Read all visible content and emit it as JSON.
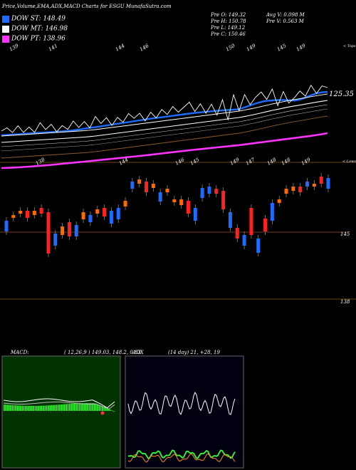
{
  "header": {
    "title": "Price,Volume,EMA,ADX,MACD Charts for ESGU MunafaSutra.com"
  },
  "legend": [
    {
      "label": "DOW ST: 148.49",
      "color": "#1e6bff"
    },
    {
      "label": "DOW MT: 146.98",
      "color": "#ffffff"
    },
    {
      "label": "DOW PT: 138.96",
      "color": "#ff33ff"
    }
  ],
  "stats": {
    "pre_o": "Pre  O: 149.32",
    "pre_h": "Pre  H: 150.78",
    "pre_l": "Pre  L: 149.12",
    "pre_c": "Pre  C: 150.46",
    "avg_v": "Avg V: 0.098  M",
    "pre_v": "Pre  V: 0.563 M"
  },
  "price_panel": {
    "top_labels": [
      "139",
      "141",
      "144",
      "146",
      "150",
      "149",
      "145",
      "149"
    ],
    "right_label": "< Tops",
    "last_value": "125.35"
  },
  "candle_panel": {
    "top_labels": [
      "138",
      "144",
      "146",
      "145",
      "149",
      "147",
      "148",
      "148",
      "149"
    ],
    "right_label": "< Lows",
    "level_label": "145",
    "bottom_label": "138"
  },
  "macd": {
    "label": "MACD:",
    "values": "( 12,26,9 ) 149.03,  148.2,  0.83"
  },
  "adx": {
    "label": "ADX",
    "values": "(14  day) 21,  +28,  19"
  },
  "chart_data": [
    {
      "type": "line",
      "x": [
        0,
        1,
        2,
        3,
        4,
        5,
        6,
        7,
        8,
        9,
        10,
        11,
        12,
        13,
        14,
        15,
        16,
        17,
        18,
        19,
        20,
        21,
        22,
        23,
        24,
        25,
        26,
        27,
        28,
        29,
        30,
        31,
        32,
        33,
        34,
        35,
        36,
        37,
        38,
        39,
        40,
        41,
        42,
        43,
        44,
        45,
        46,
        47,
        48,
        49,
        50,
        51,
        52,
        53,
        54,
        55,
        56,
        57,
        58,
        59
      ],
      "series": [
        {
          "name": "DOW ST",
          "color": "#1e6bff",
          "values": [
            190,
            189.5,
            189,
            188.6,
            188,
            187.4,
            186.8,
            186.3,
            186,
            185.5,
            185,
            184.4,
            183.8,
            183,
            182,
            180.7,
            179.6,
            178.6,
            177.4,
            176.2,
            175,
            173.8,
            172.6,
            171.4,
            170.2,
            169,
            167.8,
            166.6,
            165.6,
            164.7,
            163.7,
            162.6,
            161.5,
            160.5,
            159.5,
            158.6,
            157.7,
            157,
            156.3,
            155.6,
            155,
            154.5,
            154,
            153.4,
            150.8,
            148,
            145.4,
            143.2,
            141.6,
            141,
            140.4,
            140.5,
            140.8,
            141.2,
            139.8,
            137,
            133.8,
            131.2,
            129.6,
            129
          ]
        },
        {
          "name": "DOW MT",
          "color": "#ffffff",
          "values": [
            200,
            199.5,
            199,
            198.5,
            198,
            197.5,
            197,
            196.5,
            196,
            195.5,
            195,
            194.5,
            194,
            193.5,
            193,
            192.5,
            191.8,
            191,
            190,
            189,
            188,
            187,
            186,
            185,
            184,
            183,
            182,
            181,
            180,
            179,
            178,
            177,
            176,
            175,
            174,
            173,
            172,
            171,
            170,
            169,
            168,
            167,
            166,
            165,
            163.6,
            162,
            160.4,
            158.6,
            156.8,
            155,
            153.4,
            151.8,
            150.2,
            148.8,
            147.6,
            146.2,
            144.8,
            143.4,
            142.2,
            141
          ]
        },
        {
          "name": "DOW PT",
          "color": "#ff33ff",
          "values": [
            236,
            235.7,
            235.4,
            235,
            234.5,
            234,
            233.4,
            232.8,
            232.2,
            231.5,
            230.8,
            230,
            229.2,
            228.5,
            227.7,
            227,
            226.2,
            225.4,
            224.6,
            223.8,
            223,
            222.2,
            221.4,
            220.6,
            219.8,
            219,
            218.2,
            217.3,
            216.4,
            215.5,
            214.6,
            213.7,
            212.8,
            211.9,
            211,
            210.2,
            209.4,
            208.6,
            207.8,
            207,
            206.2,
            205.4,
            204.6,
            203.8,
            202.8,
            201.8,
            200.8,
            199.8,
            198.8,
            197.8,
            196.8,
            195.8,
            194.8,
            193.8,
            192.8,
            191.8,
            190.8,
            189.6,
            188.4,
            187
          ]
        }
      ]
    },
    {
      "type": "bar",
      "candles_y": [
        [
          310,
          325,
          "b"
        ],
        [
          302,
          306,
          "o"
        ],
        [
          296,
          300,
          "o"
        ],
        [
          296,
          306,
          "r"
        ],
        [
          296,
          302,
          "o"
        ],
        [
          292,
          300,
          "r"
        ],
        [
          298,
          356,
          "r"
        ],
        [
          328,
          345,
          "b"
        ],
        [
          318,
          330,
          "o"
        ],
        [
          312,
          332,
          "r"
        ],
        [
          316,
          332,
          "b"
        ],
        [
          298,
          308,
          "o"
        ],
        [
          302,
          312,
          "b"
        ],
        [
          294,
          300,
          "o"
        ],
        [
          292,
          304,
          "r"
        ],
        [
          296,
          314,
          "b"
        ],
        [
          292,
          308,
          "b"
        ],
        [
          282,
          290,
          "o"
        ],
        [
          255,
          265,
          "b"
        ],
        [
          252,
          258,
          "o"
        ],
        [
          255,
          270,
          "r"
        ],
        [
          258,
          264,
          "o"
        ],
        [
          270,
          283,
          "b"
        ],
        [
          265,
          270,
          "o"
        ],
        [
          280,
          284,
          "o"
        ],
        [
          280,
          288,
          "o"
        ],
        [
          282,
          300,
          "r"
        ],
        [
          292,
          310,
          "b"
        ],
        [
          264,
          278,
          "b"
        ],
        [
          262,
          272,
          "b"
        ],
        [
          265,
          272,
          "r"
        ],
        [
          268,
          294,
          "r"
        ],
        [
          298,
          320,
          "b"
        ],
        [
          320,
          335,
          "r"
        ],
        [
          330,
          345,
          "b"
        ],
        [
          292,
          330,
          "r"
        ],
        [
          335,
          355,
          "b"
        ],
        [
          307,
          325,
          "r"
        ],
        [
          285,
          310,
          "b"
        ],
        [
          280,
          285,
          "o"
        ],
        [
          265,
          272,
          "o"
        ],
        [
          262,
          268,
          "o"
        ],
        [
          262,
          270,
          "r"
        ],
        [
          255,
          262,
          "b"
        ],
        [
          258,
          262,
          "o"
        ],
        [
          248,
          258,
          "r"
        ],
        [
          250,
          265,
          "b"
        ]
      ],
      "level": 145
    }
  ]
}
